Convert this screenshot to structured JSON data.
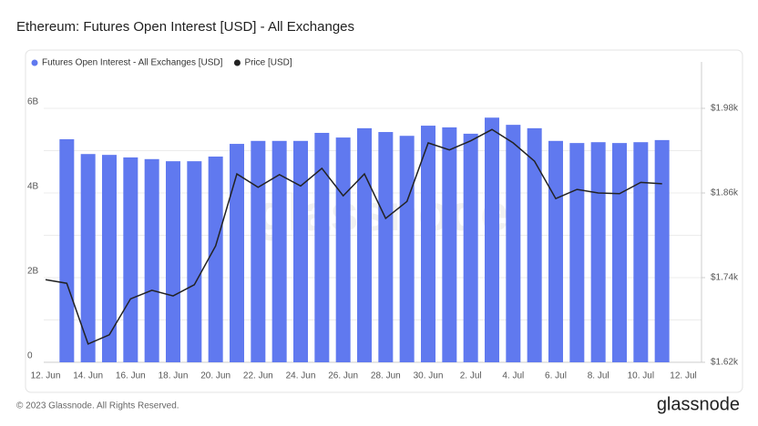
{
  "chart_data": {
    "type": "bar_line",
    "title": "Ethereum: Futures Open Interest [USD] - All Exchanges",
    "watermark": "glassnode",
    "footer": "© 2023 Glassnode. All Rights Reserved.",
    "brand": "glassnode",
    "categories": [
      "12. Jun",
      null,
      "14. Jun",
      null,
      "16. Jun",
      null,
      "18. Jun",
      null,
      "20. Jun",
      null,
      "22. Jun",
      null,
      "24. Jun",
      null,
      "26. Jun",
      null,
      "28. Jun",
      null,
      "30. Jun",
      null,
      "2. Jul",
      null,
      "4. Jul",
      null,
      "6. Jul",
      null,
      "8. Jul",
      null,
      "10. Jul",
      null,
      "12. Jul"
    ],
    "series": [
      {
        "name": "Futures Open Interest - All Exchanges [USD]",
        "color": "#6079ef",
        "type": "bar",
        "values": [
          null,
          5.27,
          4.92,
          4.9,
          4.84,
          4.8,
          4.75,
          4.75,
          4.86,
          5.16,
          5.23,
          5.23,
          5.23,
          5.42,
          5.31,
          5.53,
          5.44,
          5.35,
          5.59,
          5.55,
          5.4,
          5.78,
          5.61,
          5.53,
          5.23,
          5.18,
          5.2,
          5.18,
          5.2,
          5.25,
          null
        ]
      },
      {
        "name": "Price [USD]",
        "color": "#222222",
        "type": "line",
        "axis": "y2",
        "values": [
          1737,
          1732,
          1646,
          1659,
          1710,
          1722,
          1714,
          1730,
          1785,
          1887,
          1868,
          1886,
          1870,
          1895,
          1856,
          1887,
          1824,
          1848,
          1931,
          1921,
          1934,
          1950,
          1931,
          1905,
          1852,
          1865,
          1860,
          1859,
          1875,
          1873,
          null
        ]
      }
    ],
    "ylim": [
      0,
      7
    ],
    "yticks": [
      {
        "value": 0,
        "label": "0"
      },
      {
        "value": 2,
        "label": "2B"
      },
      {
        "value": 4,
        "label": "4B"
      },
      {
        "value": 6,
        "label": "6B"
      }
    ],
    "minor_grid": [
      1,
      3,
      5
    ],
    "y2lim": [
      1620,
      2040
    ],
    "y2ticks": [
      {
        "value": 1620,
        "label": "$1.62k"
      },
      {
        "value": 1740,
        "label": "$1.74k"
      },
      {
        "value": 1860,
        "label": "$1.86k"
      },
      {
        "value": 1980,
        "label": "$1.98k"
      }
    ],
    "grid": true,
    "legend": "top-left"
  }
}
